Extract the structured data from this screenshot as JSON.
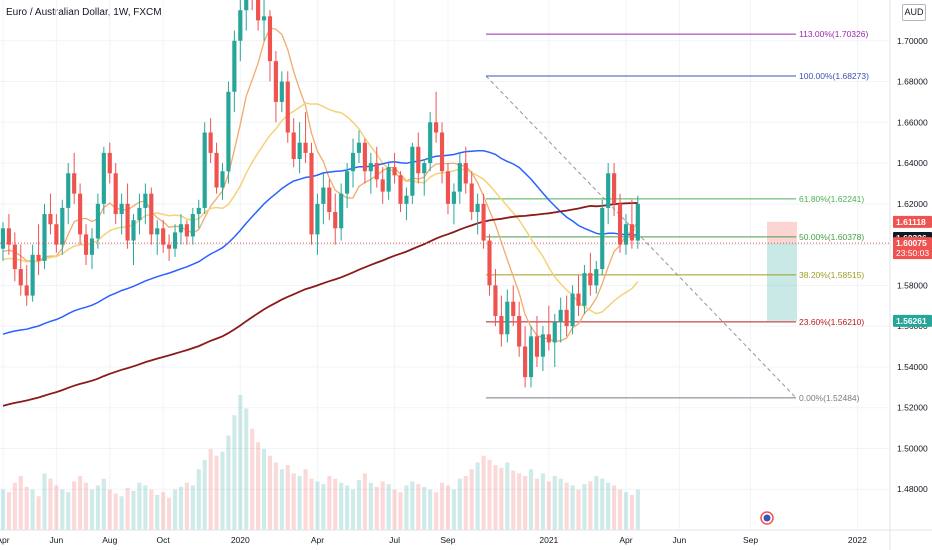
{
  "header": {
    "title": "Euro / Australian Dollar, 1W, FXCM",
    "currency": "AUD"
  },
  "colors": {
    "up": "#26a69a",
    "down": "#ef5350",
    "ma_fast": "#f2a96b",
    "ma_mid": "#f5d27a",
    "ma_100": "#2962ff",
    "ma_200": "#8b1a1a",
    "fib_113": "#9c27b0",
    "fib_100": "#3f51b5",
    "fib_618": "#4caf50",
    "fib_50": "#43a047",
    "fib_382": "#9e9d24",
    "fib_236": "#b71c1c",
    "fib_0": "#787b86"
  },
  "chart_data": {
    "type": "candlestick",
    "title": "Euro / Australian Dollar, 1W, FXCM",
    "ylim": [
      1.46,
      1.72
    ],
    "y_ticks": [
      "1.70000",
      "1.68000",
      "1.66000",
      "1.64000",
      "1.62000",
      "1.60000",
      "1.58000",
      "1.56000",
      "1.54000",
      "1.52000",
      "1.50000",
      "1.48000"
    ],
    "y_tick_values": [
      1.7,
      1.68,
      1.66,
      1.64,
      1.62,
      1.6,
      1.58,
      1.56,
      1.54,
      1.52,
      1.5,
      1.48
    ],
    "x_ticks": [
      "Apr",
      "Jun",
      "Aug",
      "Oct",
      "2020",
      "Apr",
      "Jul",
      "Sep",
      "2021",
      "Apr",
      "Jun",
      "Sep",
      "2022"
    ],
    "x_tick_index": [
      0,
      9,
      18,
      27,
      40,
      53,
      66,
      75,
      92,
      105,
      114,
      126,
      144
    ],
    "candles": [
      [
        1.598,
        1.611,
        1.592,
        1.608
      ],
      [
        1.608,
        1.615,
        1.595,
        1.6
      ],
      [
        1.6,
        1.606,
        1.582,
        1.588
      ],
      [
        1.588,
        1.6,
        1.575,
        1.58
      ],
      [
        1.58,
        1.59,
        1.57,
        1.575
      ],
      [
        1.575,
        1.6,
        1.572,
        1.595
      ],
      [
        1.595,
        1.61,
        1.585,
        1.592
      ],
      [
        1.592,
        1.62,
        1.588,
        1.615
      ],
      [
        1.615,
        1.625,
        1.605,
        1.61
      ],
      [
        1.61,
        1.615,
        1.596,
        1.6
      ],
      [
        1.6,
        1.622,
        1.595,
        1.618
      ],
      [
        1.618,
        1.64,
        1.61,
        1.635
      ],
      [
        1.635,
        1.645,
        1.62,
        1.625
      ],
      [
        1.625,
        1.63,
        1.6,
        1.605
      ],
      [
        1.605,
        1.61,
        1.59,
        1.595
      ],
      [
        1.595,
        1.608,
        1.588,
        1.603
      ],
      [
        1.603,
        1.625,
        1.598,
        1.62
      ],
      [
        1.62,
        1.648,
        1.615,
        1.645
      ],
      [
        1.645,
        1.65,
        1.63,
        1.635
      ],
      [
        1.635,
        1.64,
        1.61,
        1.615
      ],
      [
        1.615,
        1.625,
        1.605,
        1.62
      ],
      [
        1.62,
        1.63,
        1.598,
        1.602
      ],
      [
        1.602,
        1.615,
        1.59,
        1.612
      ],
      [
        1.612,
        1.625,
        1.605,
        1.618
      ],
      [
        1.618,
        1.63,
        1.61,
        1.625
      ],
      [
        1.625,
        1.628,
        1.6,
        1.605
      ],
      [
        1.605,
        1.612,
        1.595,
        1.608
      ],
      [
        1.608,
        1.612,
        1.596,
        1.6
      ],
      [
        1.6,
        1.605,
        1.592,
        1.598
      ],
      [
        1.598,
        1.61,
        1.594,
        1.606
      ],
      [
        1.606,
        1.615,
        1.6,
        1.61
      ],
      [
        1.61,
        1.612,
        1.6,
        1.604
      ],
      [
        1.604,
        1.618,
        1.6,
        1.615
      ],
      [
        1.615,
        1.622,
        1.608,
        1.618
      ],
      [
        1.618,
        1.66,
        1.615,
        1.655
      ],
      [
        1.655,
        1.662,
        1.64,
        1.645
      ],
      [
        1.645,
        1.65,
        1.625,
        1.628
      ],
      [
        1.628,
        1.64,
        1.622,
        1.636
      ],
      [
        1.636,
        1.68,
        1.63,
        1.675
      ],
      [
        1.675,
        1.705,
        1.665,
        1.7
      ],
      [
        1.7,
        1.722,
        1.69,
        1.715
      ],
      [
        1.715,
        1.735,
        1.705,
        1.728
      ],
      [
        1.728,
        1.74,
        1.715,
        1.72
      ],
      [
        1.72,
        1.73,
        1.705,
        1.71
      ],
      [
        1.71,
        1.725,
        1.7,
        1.712
      ],
      [
        1.712,
        1.715,
        1.68,
        1.69
      ],
      [
        1.69,
        1.695,
        1.66,
        1.67
      ],
      [
        1.67,
        1.685,
        1.665,
        1.68
      ],
      [
        1.68,
        1.685,
        1.65,
        1.655
      ],
      [
        1.655,
        1.662,
        1.638,
        1.642
      ],
      [
        1.642,
        1.66,
        1.635,
        1.65
      ],
      [
        1.65,
        1.665,
        1.64,
        1.645
      ],
      [
        1.645,
        1.65,
        1.6,
        1.605
      ],
      [
        1.605,
        1.625,
        1.595,
        1.62
      ],
      [
        1.62,
        1.635,
        1.61,
        1.628
      ],
      [
        1.628,
        1.632,
        1.612,
        1.616
      ],
      [
        1.616,
        1.625,
        1.6,
        1.608
      ],
      [
        1.608,
        1.63,
        1.602,
        1.625
      ],
      [
        1.625,
        1.64,
        1.618,
        1.636
      ],
      [
        1.636,
        1.652,
        1.628,
        1.645
      ],
      [
        1.645,
        1.656,
        1.64,
        1.65
      ],
      [
        1.65,
        1.652,
        1.63,
        1.636
      ],
      [
        1.636,
        1.645,
        1.625,
        1.64
      ],
      [
        1.64,
        1.648,
        1.628,
        1.632
      ],
      [
        1.632,
        1.638,
        1.62,
        1.626
      ],
      [
        1.626,
        1.64,
        1.622,
        1.638
      ],
      [
        1.638,
        1.645,
        1.63,
        1.634
      ],
      [
        1.634,
        1.636,
        1.616,
        1.62
      ],
      [
        1.62,
        1.628,
        1.612,
        1.624
      ],
      [
        1.624,
        1.65,
        1.62,
        1.648
      ],
      [
        1.648,
        1.655,
        1.63,
        1.635
      ],
      [
        1.635,
        1.642,
        1.624,
        1.64
      ],
      [
        1.64,
        1.665,
        1.636,
        1.66
      ],
      [
        1.66,
        1.675,
        1.65,
        1.655
      ],
      [
        1.655,
        1.66,
        1.63,
        1.636
      ],
      [
        1.636,
        1.64,
        1.615,
        1.62
      ],
      [
        1.62,
        1.63,
        1.61,
        1.626
      ],
      [
        1.626,
        1.645,
        1.62,
        1.64
      ],
      [
        1.64,
        1.648,
        1.625,
        1.63
      ],
      [
        1.63,
        1.636,
        1.612,
        1.616
      ],
      [
        1.616,
        1.625,
        1.605,
        1.62
      ],
      [
        1.62,
        1.625,
        1.598,
        1.602
      ],
      [
        1.602,
        1.605,
        1.575,
        1.58
      ],
      [
        1.58,
        1.588,
        1.56,
        1.565
      ],
      [
        1.565,
        1.575,
        1.55,
        1.556
      ],
      [
        1.556,
        1.578,
        1.552,
        1.572
      ],
      [
        1.572,
        1.58,
        1.56,
        1.565
      ],
      [
        1.565,
        1.572,
        1.545,
        1.55
      ],
      [
        1.55,
        1.56,
        1.53,
        1.535
      ],
      [
        1.535,
        1.56,
        1.53,
        1.555
      ],
      [
        1.555,
        1.565,
        1.54,
        1.545
      ],
      [
        1.545,
        1.56,
        1.538,
        1.556
      ],
      [
        1.556,
        1.57,
        1.548,
        1.552
      ],
      [
        1.552,
        1.566,
        1.54,
        1.562
      ],
      [
        1.562,
        1.574,
        1.552,
        1.568
      ],
      [
        1.568,
        1.575,
        1.555,
        1.56
      ],
      [
        1.56,
        1.58,
        1.556,
        1.576
      ],
      [
        1.576,
        1.585,
        1.565,
        1.57
      ],
      [
        1.57,
        1.59,
        1.566,
        1.586
      ],
      [
        1.586,
        1.596,
        1.575,
        1.58
      ],
      [
        1.58,
        1.592,
        1.576,
        1.588
      ],
      [
        1.588,
        1.622,
        1.585,
        1.618
      ],
      [
        1.618,
        1.64,
        1.61,
        1.635
      ],
      [
        1.635,
        1.64,
        1.614,
        1.62
      ],
      [
        1.62,
        1.625,
        1.596,
        1.6
      ],
      [
        1.6,
        1.615,
        1.595,
        1.61
      ],
      [
        1.61,
        1.622,
        1.598,
        1.602
      ],
      [
        1.602,
        1.624,
        1.598,
        1.62
      ]
    ],
    "volume": [
      0.3,
      0.28,
      0.35,
      0.4,
      0.32,
      0.3,
      0.25,
      0.42,
      0.38,
      0.33,
      0.3,
      0.28,
      0.36,
      0.4,
      0.35,
      0.3,
      0.33,
      0.38,
      0.3,
      0.27,
      0.25,
      0.31,
      0.29,
      0.35,
      0.33,
      0.3,
      0.26,
      0.28,
      0.24,
      0.3,
      0.32,
      0.35,
      0.33,
      0.45,
      0.52,
      0.6,
      0.55,
      0.58,
      0.7,
      0.85,
      1.0,
      0.9,
      0.75,
      0.65,
      0.6,
      0.55,
      0.5,
      0.45,
      0.48,
      0.42,
      0.4,
      0.45,
      0.38,
      0.36,
      0.34,
      0.4,
      0.38,
      0.35,
      0.33,
      0.3,
      0.37,
      0.42,
      0.35,
      0.32,
      0.36,
      0.34,
      0.3,
      0.28,
      0.33,
      0.36,
      0.34,
      0.32,
      0.3,
      0.28,
      0.35,
      0.33,
      0.3,
      0.38,
      0.4,
      0.45,
      0.5,
      0.55,
      0.52,
      0.48,
      0.46,
      0.5,
      0.44,
      0.42,
      0.4,
      0.45,
      0.38,
      0.42,
      0.36,
      0.4,
      0.38,
      0.35,
      0.33,
      0.3,
      0.34,
      0.36,
      0.4,
      0.38,
      0.35,
      0.33,
      0.3,
      0.28,
      0.26,
      0.3
    ],
    "fib_levels": [
      {
        "label": "113.00%(1.70326)",
        "value": 1.70326,
        "color_key": "fib_113"
      },
      {
        "label": "100.00%(1.68273)",
        "value": 1.68273,
        "color_key": "fib_100"
      },
      {
        "label": "61.80%(1.62241)",
        "value": 1.62241,
        "color_key": "fib_618"
      },
      {
        "label": "50.00%(1.60378)",
        "value": 1.60378,
        "color_key": "fib_50"
      },
      {
        "label": "38.20%(1.58515)",
        "value": 1.58515,
        "color_key": "fib_382"
      },
      {
        "label": "23.60%(1.56210)",
        "value": 1.5621,
        "color_key": "fib_236"
      },
      {
        "label": "0.00%(1.52484)",
        "value": 1.52484,
        "color_key": "fib_0"
      }
    ],
    "price_tags": [
      {
        "label": "1.61118",
        "value": 1.61118,
        "bg": "#ef5350"
      },
      {
        "label": "1.60326",
        "value": 1.60326,
        "bg": "#131722"
      },
      {
        "label": "1.60075",
        "value": 1.60075,
        "bg": "#ef5350",
        "sub": "23:50:03"
      },
      {
        "label": "1.56261",
        "value": 1.56261,
        "bg": "#26a69a"
      }
    ]
  }
}
